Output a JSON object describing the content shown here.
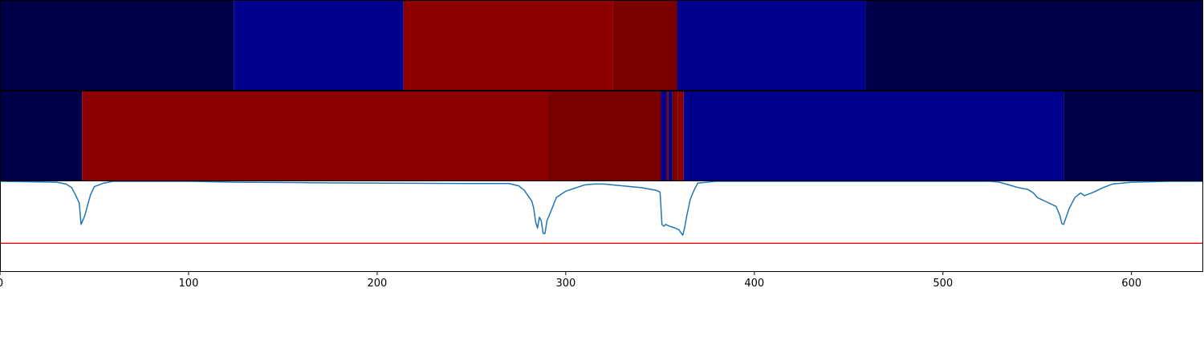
{
  "chart_data": {
    "type": "heatmap",
    "title": "",
    "xlabel": "",
    "ylabel": "",
    "xlim": [
      0,
      638
    ],
    "x_ticks": [
      0,
      100,
      200,
      300,
      400,
      500,
      600
    ],
    "colors": {
      "navy_dark": "#00004a",
      "navy": "#00008c",
      "red": "#8c0000",
      "maroon": "#7a0000",
      "line": "#1f77b4",
      "threshold": "#e31a1c"
    },
    "tracks": [
      {
        "segments": [
          {
            "start": 0,
            "end": 124,
            "color": "navy_dark"
          },
          {
            "start": 124,
            "end": 214,
            "color": "navy"
          },
          {
            "start": 214,
            "end": 325,
            "color": "red"
          },
          {
            "start": 325,
            "end": 359,
            "color": "maroon"
          },
          {
            "start": 359,
            "end": 459,
            "color": "navy"
          },
          {
            "start": 459,
            "end": 638,
            "color": "navy_dark"
          }
        ]
      },
      {
        "segments": [
          {
            "start": 0,
            "end": 43.5,
            "color": "navy_dark"
          },
          {
            "start": 43.5,
            "end": 290.5,
            "color": "red"
          },
          {
            "start": 290.5,
            "end": 350.5,
            "color": "maroon"
          },
          {
            "start": 350.5,
            "end": 353.5,
            "color": "navy"
          },
          {
            "start": 353.5,
            "end": 354.5,
            "color": "maroon"
          },
          {
            "start": 354.5,
            "end": 356.5,
            "color": "navy"
          },
          {
            "start": 356.5,
            "end": 359.5,
            "color": "maroon"
          },
          {
            "start": 359.5,
            "end": 362.5,
            "color": "red"
          },
          {
            "start": 362.5,
            "end": 564,
            "color": "navy"
          },
          {
            "start": 564,
            "end": 638,
            "color": "navy_dark"
          }
        ]
      }
    ],
    "signal": {
      "ylim": [
        0,
        1
      ],
      "threshold": 0.31,
      "x": [
        0,
        30,
        35,
        38,
        40,
        42,
        43,
        45,
        46,
        48,
        50,
        55,
        60,
        70,
        100,
        125,
        160,
        200,
        250,
        270,
        275,
        278,
        280,
        282,
        283,
        284,
        285,
        286,
        287,
        288,
        289,
        290,
        292,
        295,
        300,
        310,
        315,
        320,
        330,
        340,
        348,
        350,
        351,
        352,
        353,
        355,
        358,
        360,
        362,
        363,
        364,
        365,
        366,
        368,
        370,
        380,
        400,
        450,
        500,
        525,
        530,
        535,
        540,
        545,
        548,
        550,
        555,
        560,
        562,
        563,
        564,
        565,
        567,
        570,
        573,
        575,
        580,
        585,
        590,
        600,
        620,
        638
      ],
      "y": [
        1.0,
        0.99,
        0.97,
        0.93,
        0.85,
        0.76,
        0.52,
        0.62,
        0.7,
        0.85,
        0.94,
        0.98,
        1.0,
        1.0,
        1.0,
        0.99,
        0.985,
        0.98,
        0.975,
        0.975,
        0.95,
        0.9,
        0.84,
        0.78,
        0.7,
        0.55,
        0.48,
        0.6,
        0.56,
        0.42,
        0.42,
        0.56,
        0.66,
        0.82,
        0.89,
        0.96,
        0.97,
        0.97,
        0.95,
        0.93,
        0.9,
        0.88,
        0.52,
        0.5,
        0.52,
        0.5,
        0.48,
        0.46,
        0.4,
        0.48,
        0.6,
        0.7,
        0.8,
        0.9,
        0.98,
        1.0,
        1.0,
        1.0,
        1.0,
        1.0,
        0.99,
        0.96,
        0.93,
        0.91,
        0.87,
        0.82,
        0.77,
        0.72,
        0.62,
        0.53,
        0.52,
        0.58,
        0.7,
        0.82,
        0.87,
        0.84,
        0.88,
        0.93,
        0.97,
        0.99,
        1.0,
        1.0
      ]
    }
  }
}
